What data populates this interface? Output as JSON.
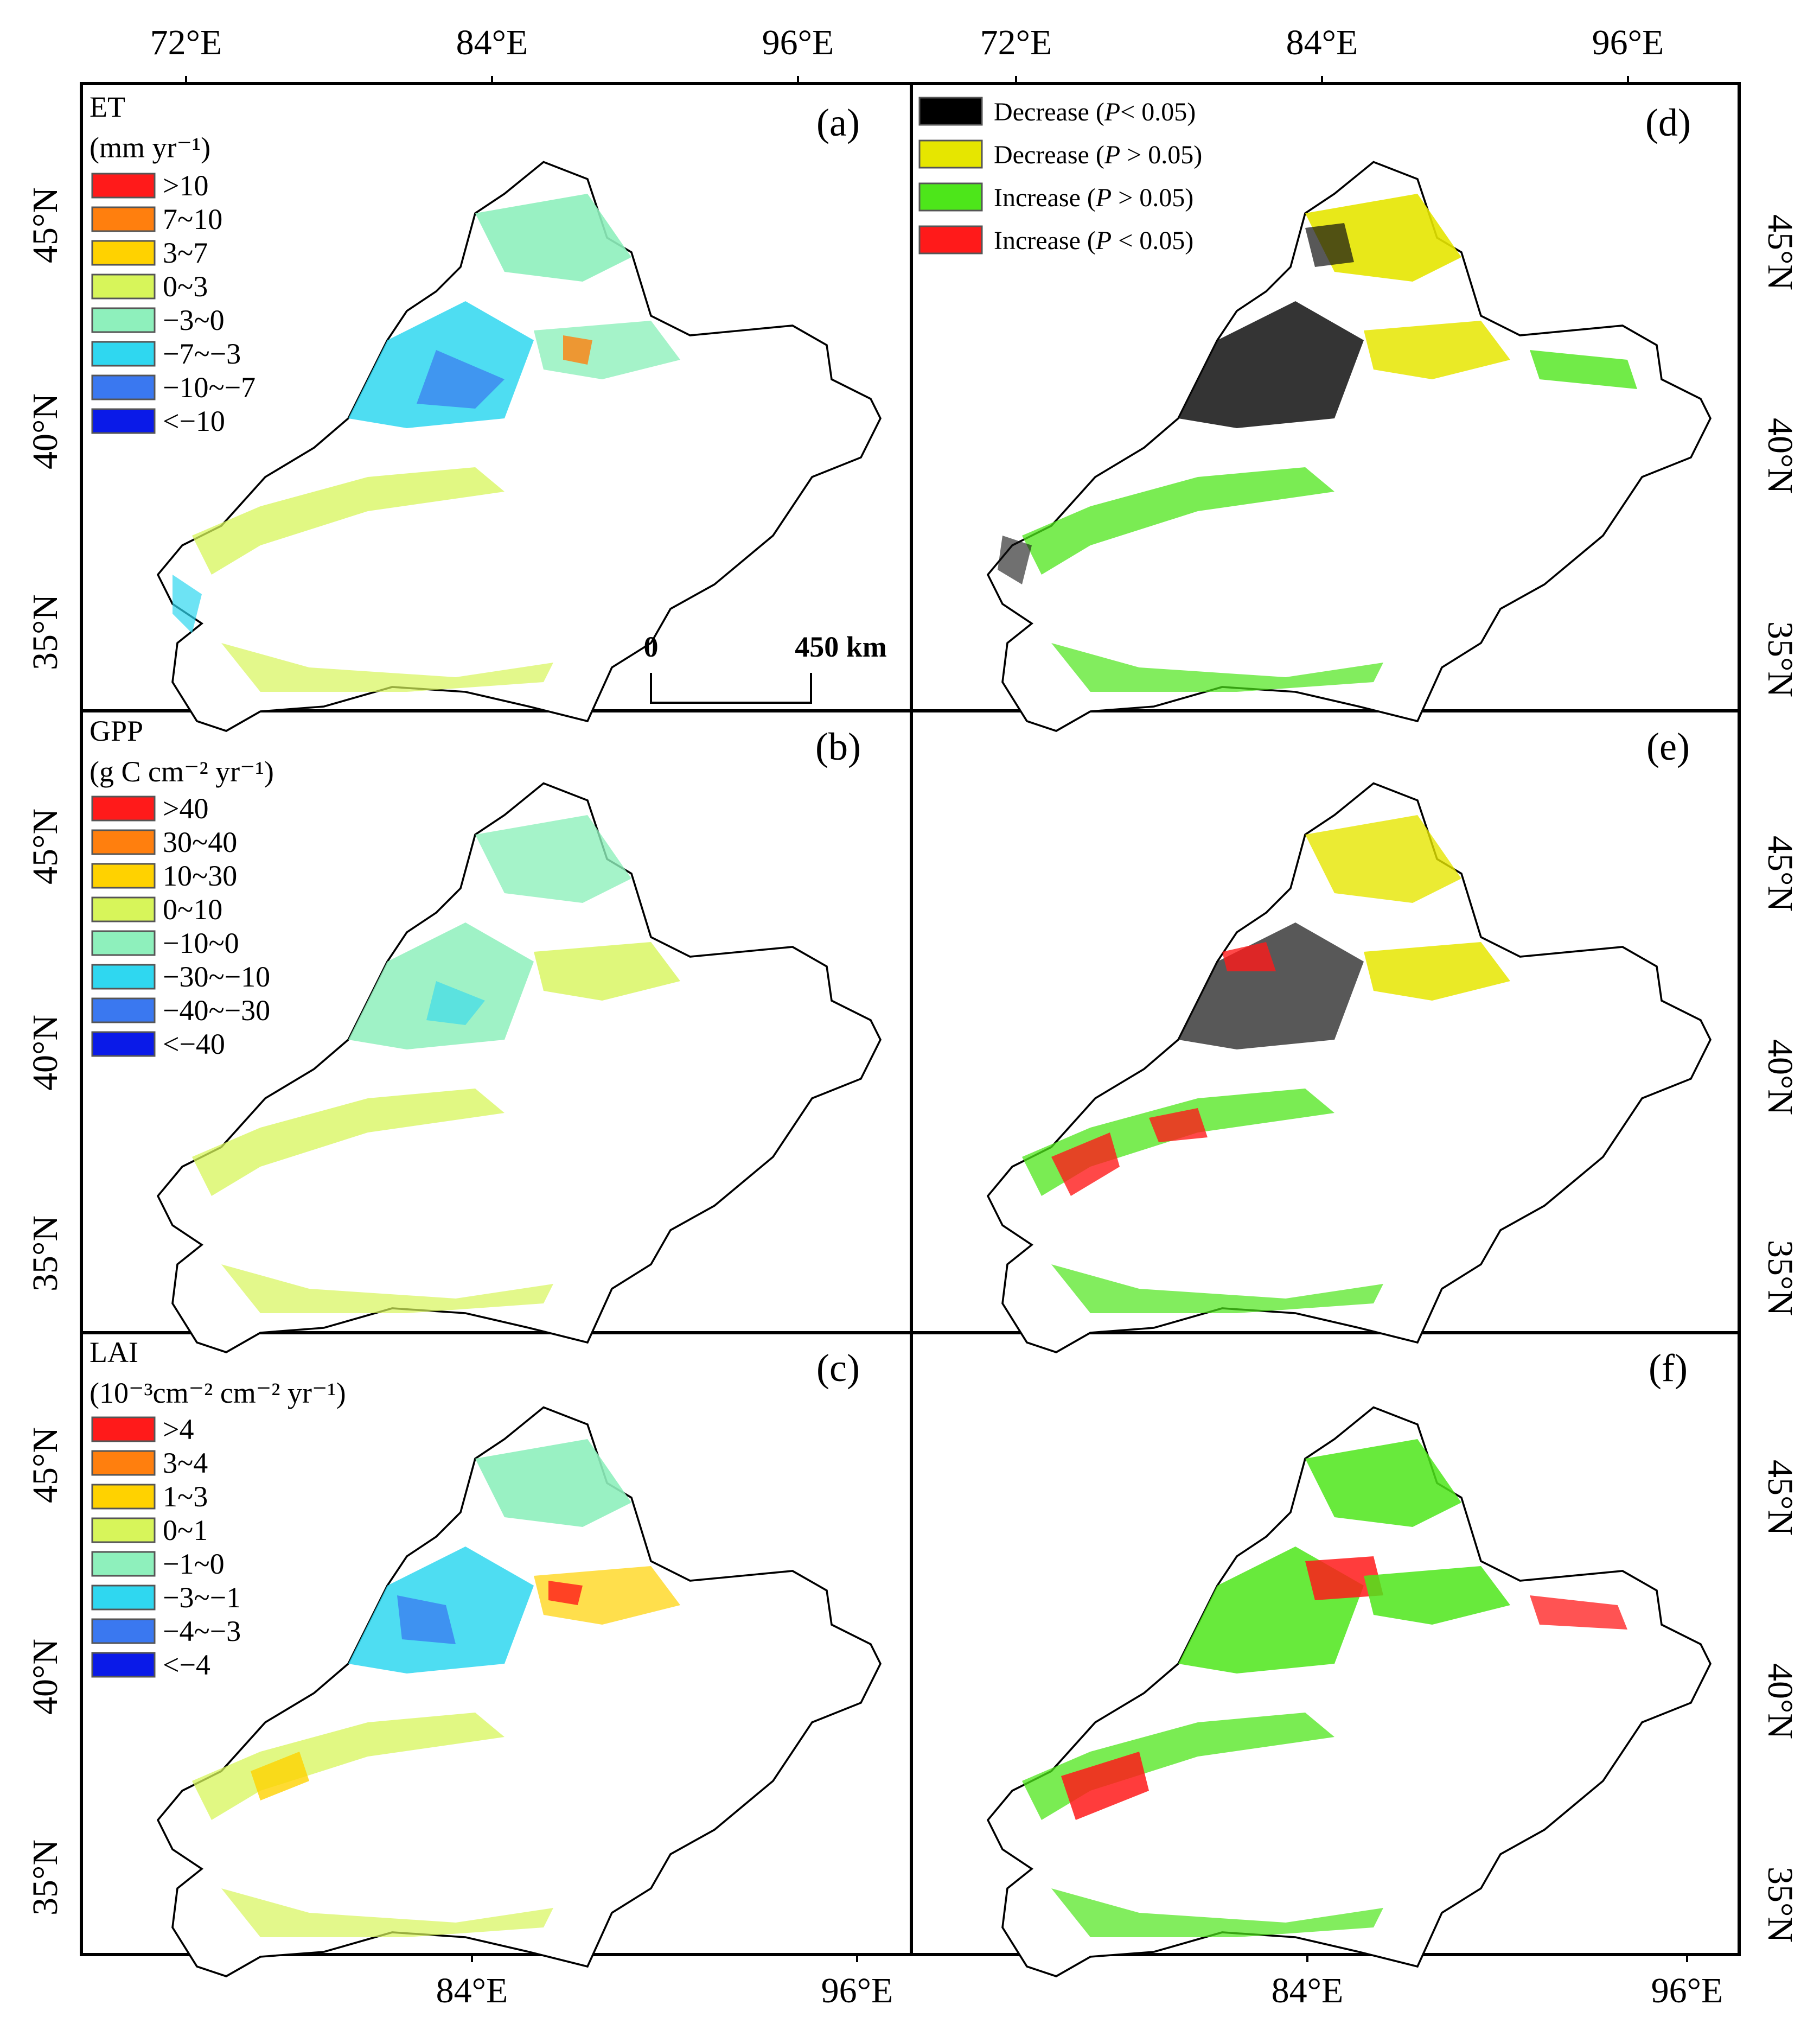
{
  "axes": {
    "top_lon": [
      "72°E",
      "84°E",
      "96°E"
    ],
    "bottom_lon": [
      "84°E",
      "96°E"
    ],
    "left_lat": [
      "45°N",
      "40°N",
      "35°N"
    ],
    "right_lat": [
      "45°N",
      "40°N",
      "35°N"
    ]
  },
  "panels": {
    "a": {
      "letter": "(a)",
      "title": "ET",
      "unit": "(mm yr⁻¹)",
      "legend": [
        ">10",
        "7~10",
        "3~7",
        "0~3",
        "−3~0",
        "−7~−3",
        "−10~−7",
        "<−10"
      ]
    },
    "b": {
      "letter": "(b)",
      "title": "GPP",
      "unit": "(g C cm⁻² yr⁻¹)",
      "legend": [
        ">40",
        "30~40",
        "10~30",
        "0~10",
        "−10~0",
        "−30~−10",
        "−40~−30",
        "<−40"
      ]
    },
    "c": {
      "letter": "(c)",
      "title": "LAI",
      "unit": "(10⁻³cm⁻² cm⁻² yr⁻¹)",
      "legend": [
        ">4",
        "3~4",
        "1~3",
        "0~1",
        "−1~0",
        "−3~−1",
        "−4~−3",
        "<−4"
      ]
    },
    "d": {
      "letter": "(d)"
    },
    "e": {
      "letter": "(e)"
    },
    "f": {
      "letter": "(f)"
    }
  },
  "trend_colors": [
    "#ff1a1a",
    "#ff7f0e",
    "#ffd200",
    "#d7f55a",
    "#8ef0bc",
    "#2fd7f0",
    "#3a78f0",
    "#0a1ae8"
  ],
  "significance_legend": [
    {
      "label": "Decrease (",
      "p": "P",
      "cond": "< 0.05)",
      "color": "#000000"
    },
    {
      "label": "Decrease (",
      "p": "P",
      "cond": " > 0.05)",
      "color": "#e6e600"
    },
    {
      "label": "Increase (",
      "p": "P",
      "cond": " > 0.05)",
      "color": "#4de61a"
    },
    {
      "label": "Increase (",
      "p": "P",
      "cond": " < 0.05)",
      "color": "#ff1a1a"
    }
  ],
  "scale_bar": {
    "start": "0",
    "end": "450 km"
  }
}
